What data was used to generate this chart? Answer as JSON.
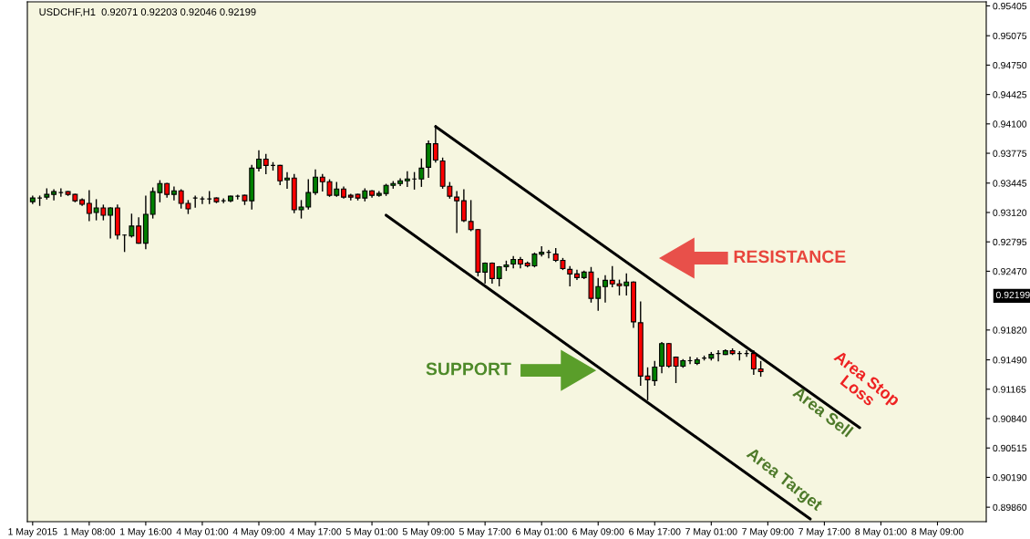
{
  "chart_data": {
    "type": "candlestick",
    "title": "USDCHF,H1  0.92071 0.92203 0.92046 0.92199",
    "categories": [
      "1 May 2015",
      null,
      null,
      null,
      null,
      null,
      null,
      null,
      "1 May 08:00",
      null,
      null,
      null,
      null,
      null,
      null,
      null,
      "1 May 16:00",
      null,
      null,
      null,
      null,
      null,
      null,
      null,
      "4 May 01:00",
      null,
      null,
      null,
      null,
      null,
      null,
      null,
      "4 May 09:00",
      null,
      null,
      null,
      null,
      null,
      null,
      null,
      "4 May 17:00",
      null,
      null,
      null,
      null,
      null,
      null,
      null,
      "5 May 01:00",
      null,
      null,
      null,
      null,
      null,
      null,
      null,
      "5 May 09:00",
      null,
      null,
      null,
      null,
      null,
      null,
      null,
      "5 May 17:00",
      null,
      null,
      null,
      null,
      null,
      null,
      null,
      "6 May 01:00",
      null,
      null,
      null,
      null,
      null,
      null,
      null,
      "6 May 09:00",
      null,
      null,
      null,
      null,
      null,
      null,
      null,
      "6 May 17:00",
      null,
      null,
      null,
      null,
      null,
      null,
      null,
      "7 May 01:00",
      null,
      null,
      null,
      null,
      null,
      null,
      null,
      "7 May 09:00",
      null,
      null,
      null,
      null,
      null,
      null,
      null,
      "7 May 17:00",
      null,
      null,
      null,
      null,
      null,
      null,
      null,
      "8 May 01:00",
      null,
      null,
      null,
      null,
      null,
      null,
      null,
      "8 May 09:00",
      null,
      null,
      null,
      null,
      null,
      null,
      null
    ],
    "ohlc": [
      [
        0.9324,
        0.933,
        0.9322,
        0.9328
      ],
      [
        0.9328,
        0.933,
        0.932,
        0.9328
      ],
      [
        0.9329,
        0.9338,
        0.9327,
        0.9332
      ],
      [
        0.9332,
        0.9337,
        0.9326,
        0.9335
      ],
      [
        0.9334,
        0.9338,
        0.933,
        0.9334
      ],
      [
        0.9335,
        0.9335,
        0.9331,
        0.9332
      ],
      [
        0.9332,
        0.9332,
        0.9324,
        0.9325
      ],
      [
        0.9326,
        0.9327,
        0.932,
        0.9321
      ],
      [
        0.9322,
        0.9336,
        0.9303,
        0.9311
      ],
      [
        0.9312,
        0.9326,
        0.9304,
        0.9317
      ],
      [
        0.9317,
        0.932,
        0.9304,
        0.9309
      ],
      [
        0.9309,
        0.9317,
        0.9284,
        0.9317
      ],
      [
        0.9317,
        0.932,
        0.9283,
        0.9287
      ],
      [
        0.9287,
        0.9287,
        0.9269,
        0.9287
      ],
      [
        0.9286,
        0.931,
        0.9285,
        0.9297
      ],
      [
        0.9297,
        0.9306,
        0.9278,
        0.9278
      ],
      [
        0.9278,
        0.933,
        0.9272,
        0.931
      ],
      [
        0.931,
        0.9339,
        0.9306,
        0.9335
      ],
      [
        0.9334,
        0.9347,
        0.9324,
        0.9344
      ],
      [
        0.9344,
        0.9344,
        0.9329,
        0.9332
      ],
      [
        0.9332,
        0.934,
        0.9326,
        0.9336
      ],
      [
        0.9336,
        0.9337,
        0.9317,
        0.9322
      ],
      [
        0.9322,
        0.9325,
        0.9311,
        0.9316
      ],
      [
        0.9328,
        0.933,
        0.9318,
        0.9328
      ],
      [
        0.9327,
        0.9329,
        0.9322,
        0.9327
      ],
      [
        0.9327,
        0.9335,
        0.9322,
        0.9327
      ],
      [
        0.9328,
        0.9328,
        0.9323,
        0.9324
      ],
      [
        0.9325,
        0.9327,
        0.9323,
        0.9325
      ],
      [
        0.9325,
        0.933,
        0.9324,
        0.933
      ],
      [
        0.933,
        0.9331,
        0.9327,
        0.933
      ],
      [
        0.9331,
        0.9331,
        0.9321,
        0.9325
      ],
      [
        0.9325,
        0.9364,
        0.9316,
        0.9361
      ],
      [
        0.9361,
        0.938,
        0.9358,
        0.9371
      ],
      [
        0.9371,
        0.9376,
        0.9355,
        0.9364
      ],
      [
        0.9364,
        0.9367,
        0.9359,
        0.9364
      ],
      [
        0.9364,
        0.9364,
        0.9343,
        0.9347
      ],
      [
        0.9348,
        0.9356,
        0.9339,
        0.935
      ],
      [
        0.935,
        0.9354,
        0.9312,
        0.9315
      ],
      [
        0.9315,
        0.9325,
        0.9306,
        0.9318
      ],
      [
        0.9318,
        0.9348,
        0.9316,
        0.9334
      ],
      [
        0.9334,
        0.9359,
        0.9332,
        0.9351
      ],
      [
        0.9351,
        0.9354,
        0.9336,
        0.9346
      ],
      [
        0.9346,
        0.9348,
        0.933,
        0.9331
      ],
      [
        0.9331,
        0.9345,
        0.933,
        0.9338
      ],
      [
        0.9338,
        0.934,
        0.9328,
        0.9329
      ],
      [
        0.9331,
        0.9332,
        0.9326,
        0.9329
      ],
      [
        0.9332,
        0.9332,
        0.9326,
        0.9328
      ],
      [
        0.9328,
        0.9338,
        0.9325,
        0.9336
      ],
      [
        0.9336,
        0.9336,
        0.9329,
        0.9331
      ],
      [
        0.9331,
        0.9335,
        0.933,
        0.9333
      ],
      [
        0.9333,
        0.9343,
        0.9331,
        0.9342
      ],
      [
        0.9342,
        0.9346,
        0.9339,
        0.9344
      ],
      [
        0.9344,
        0.9349,
        0.9342,
        0.9347
      ],
      [
        0.9347,
        0.9357,
        0.9341,
        0.9349
      ],
      [
        0.9349,
        0.9356,
        0.9338,
        0.9349
      ],
      [
        0.9349,
        0.9371,
        0.9341,
        0.9361
      ],
      [
        0.9362,
        0.9391,
        0.9351,
        0.9388
      ],
      [
        0.9388,
        0.9408,
        0.9368,
        0.937
      ],
      [
        0.9369,
        0.9372,
        0.9339,
        0.9341
      ],
      [
        0.9341,
        0.9345,
        0.9328,
        0.933
      ],
      [
        0.9329,
        0.9335,
        0.929,
        0.9325
      ],
      [
        0.9325,
        0.9337,
        0.9302,
        0.9303
      ],
      [
        0.9302,
        0.9325,
        0.9292,
        0.9293
      ],
      [
        0.9293,
        0.9293,
        0.9242,
        0.9246
      ],
      [
        0.9246,
        0.9256,
        0.9234,
        0.9256
      ],
      [
        0.9256,
        0.9256,
        0.9234,
        0.9239
      ],
      [
        0.9239,
        0.9252,
        0.9231,
        0.9252
      ],
      [
        0.9252,
        0.9258,
        0.9248,
        0.9254
      ],
      [
        0.9255,
        0.9263,
        0.9251,
        0.926
      ],
      [
        0.926,
        0.9262,
        0.9251,
        0.9255
      ],
      [
        0.9256,
        0.9257,
        0.9252,
        0.9253
      ],
      [
        0.9253,
        0.9267,
        0.9252,
        0.9266
      ],
      [
        0.9266,
        0.9274,
        0.9264,
        0.9268
      ],
      [
        0.9268,
        0.927,
        0.9262,
        0.9268
      ],
      [
        0.9266,
        0.9272,
        0.9258,
        0.9259
      ],
      [
        0.9259,
        0.9261,
        0.9249,
        0.925
      ],
      [
        0.9249,
        0.9252,
        0.9231,
        0.9244
      ],
      [
        0.9244,
        0.9248,
        0.9238,
        0.924
      ],
      [
        0.924,
        0.9247,
        0.9239,
        0.9246
      ],
      [
        0.9246,
        0.9251,
        0.9213,
        0.9217
      ],
      [
        0.9217,
        0.9239,
        0.9204,
        0.923
      ],
      [
        0.923,
        0.9242,
        0.9213,
        0.9237
      ],
      [
        0.9237,
        0.9252,
        0.923,
        0.9233
      ],
      [
        0.9233,
        0.9237,
        0.9221,
        0.9231
      ],
      [
        0.9231,
        0.9244,
        0.9221,
        0.9235
      ],
      [
        0.9235,
        0.9235,
        0.9185,
        0.9191
      ],
      [
        0.919,
        0.9213,
        0.9121,
        0.9131
      ],
      [
        0.9131,
        0.914,
        0.9105,
        0.9127
      ],
      [
        0.9126,
        0.9147,
        0.9121,
        0.9141
      ],
      [
        0.9142,
        0.9168,
        0.9135,
        0.9167
      ],
      [
        0.9167,
        0.9167,
        0.9141,
        0.9142
      ],
      [
        0.9152,
        0.9152,
        0.9124,
        0.9142
      ],
      [
        0.9142,
        0.9149,
        0.9141,
        0.9148
      ],
      [
        0.9148,
        0.9152,
        0.9145,
        0.9148
      ],
      [
        0.9145,
        0.9151,
        0.9144,
        0.9149
      ],
      [
        0.9151,
        0.9153,
        0.9149,
        0.9151
      ],
      [
        0.9151,
        0.9157,
        0.9149,
        0.9155
      ],
      [
        0.9156,
        0.9159,
        0.9148,
        0.9156
      ],
      [
        0.9155,
        0.916,
        0.9155,
        0.9159
      ],
      [
        0.9159,
        0.9161,
        0.9155,
        0.9156
      ],
      [
        0.9156,
        0.9158,
        0.9149,
        0.9156
      ],
      [
        0.9156,
        0.9159,
        0.9153,
        0.9156
      ],
      [
        0.9156,
        0.9159,
        0.9133,
        0.9139
      ],
      [
        0.9139,
        0.9147,
        0.9131,
        0.9136
      ],
      null,
      null,
      null,
      null,
      null,
      null,
      null,
      null,
      null,
      null,
      null,
      null,
      null,
      null,
      null,
      null,
      null,
      null,
      null,
      null,
      null,
      null,
      null,
      null,
      null,
      null,
      null,
      null,
      null,
      null,
      null,
      null
    ],
    "colors": [
      "#008000",
      "#000000",
      "#008000",
      "#008000",
      "#000000",
      "#ff0000",
      "#ff0000",
      "#ff0000",
      "#ff0000",
      "#008000",
      "#ff0000",
      "#008000",
      "#ff0000",
      "#000000",
      "#008000",
      "#ff0000",
      "#008000",
      "#008000",
      "#008000",
      "#ff0000",
      "#008000",
      "#ff0000",
      "#ff0000",
      "#000000",
      "#000000",
      "#000000",
      "#ff0000",
      "#000000",
      "#008000",
      "#000000",
      "#ff0000",
      "#008000",
      "#008000",
      "#ff0000",
      "#000000",
      "#ff0000",
      "#008000",
      "#ff0000",
      "#008000",
      "#008000",
      "#008000",
      "#ff0000",
      "#ff0000",
      "#008000",
      "#ff0000",
      "#ff0000",
      "#ff0000",
      "#008000",
      "#ff0000",
      "#008000",
      "#008000",
      "#008000",
      "#008000",
      "#008000",
      "#000000",
      "#008000",
      "#008000",
      "#ff0000",
      "#ff0000",
      "#ff0000",
      "#ff0000",
      "#ff0000",
      "#ff0000",
      "#ff0000",
      "#008000",
      "#ff0000",
      "#008000",
      "#008000",
      "#008000",
      "#ff0000",
      "#ff0000",
      "#008000",
      "#008000",
      "#000000",
      "#ff0000",
      "#ff0000",
      "#ff0000",
      "#ff0000",
      "#008000",
      "#ff0000",
      "#008000",
      "#008000",
      "#ff0000",
      "#ff0000",
      "#008000",
      "#ff0000",
      "#ff0000",
      "#ff0000",
      "#008000",
      "#008000",
      "#ff0000",
      "#ff0000",
      "#008000",
      "#000000",
      "#008000",
      "#000000",
      "#008000",
      "#000000",
      "#008000",
      "#ff0000",
      "#000000",
      "#000000",
      "#ff0000",
      "#ff0000",
      null,
      null,
      null,
      null,
      null,
      null,
      null,
      null,
      null,
      null,
      null,
      null,
      null,
      null,
      null,
      null,
      null,
      null,
      null,
      null,
      null,
      null,
      null,
      null,
      null,
      null,
      null,
      null,
      null,
      null,
      null,
      null
    ],
    "series": [
      {
        "type": "line",
        "color": "#000000",
        "values": [
          null,
          null,
          null,
          null,
          null,
          null,
          null,
          null,
          null,
          null,
          null,
          null,
          null,
          null,
          null,
          null,
          null,
          null,
          null,
          null,
          null,
          null,
          null,
          null,
          null,
          null,
          null,
          null,
          null,
          null,
          null,
          null,
          null,
          null,
          null,
          null,
          null,
          null,
          null,
          null,
          null,
          null,
          null,
          null,
          null,
          null,
          null,
          null,
          null,
          null,
          null,
          null,
          null,
          null,
          null,
          null,
          null,
          0.9407,
          null,
          null,
          null,
          null,
          null,
          null,
          null,
          null,
          null,
          null,
          null,
          null,
          null,
          null,
          null,
          null,
          null,
          null,
          null,
          null,
          null,
          null,
          null,
          null,
          null,
          null,
          null,
          null,
          null,
          null,
          null,
          null,
          null,
          null,
          null,
          null,
          null,
          null,
          null,
          null,
          null,
          null,
          null,
          null,
          null,
          null,
          null,
          null,
          null,
          null,
          null,
          null,
          null,
          null,
          null,
          null,
          null,
          null,
          null,
          0.9074,
          null,
          null,
          null,
          null,
          null,
          null,
          null,
          null,
          null,
          null,
          null,
          null,
          null,
          null,
          null,
          null,
          null,
          null
        ]
      },
      {
        "type": "line",
        "color": "#000000",
        "values": [
          null,
          null,
          null,
          null,
          null,
          null,
          null,
          null,
          null,
          null,
          null,
          null,
          null,
          null,
          null,
          null,
          null,
          null,
          null,
          null,
          null,
          null,
          null,
          null,
          null,
          null,
          null,
          null,
          null,
          null,
          null,
          null,
          null,
          null,
          null,
          null,
          null,
          null,
          null,
          null,
          null,
          null,
          null,
          null,
          null,
          null,
          null,
          null,
          null,
          null,
          0.9309,
          null,
          null,
          null,
          null,
          null,
          null,
          null,
          null,
          null,
          null,
          null,
          null,
          null,
          null,
          null,
          null,
          null,
          null,
          null,
          null,
          null,
          null,
          null,
          null,
          null,
          null,
          null,
          null,
          null,
          null,
          null,
          null,
          null,
          null,
          null,
          null,
          null,
          null,
          null,
          null,
          null,
          null,
          null,
          null,
          null,
          null,
          null,
          null,
          null,
          null,
          null,
          null,
          null,
          null,
          null,
          null,
          null,
          null,
          null,
          0.8973,
          null,
          null,
          null,
          null,
          null,
          null,
          null,
          null,
          null,
          null,
          null,
          null,
          null,
          null,
          null,
          null,
          null,
          null,
          null,
          null,
          null,
          null,
          null,
          null,
          null
        ]
      }
    ],
    "ylim": [
      0.897,
      0.9545
    ],
    "yticks": [
      0.95405,
      0.95075,
      {
        "value": 0.9475,
        "label": "0.94750"
      },
      0.94425,
      {
        "value": 0.941,
        "label": "0.94100"
      },
      0.93775,
      0.93445,
      {
        "value": 0.9312,
        "label": "0.93120"
      },
      0.92795,
      {
        "value": 0.9247,
        "label": "0.92470"
      },
      {
        "value": 0.9182,
        "label": "0.91820"
      },
      {
        "value": 0.9149,
        "label": "0.91490"
      },
      0.91165,
      {
        "value": 0.9084,
        "label": "0.90840"
      },
      0.90515,
      {
        "value": 0.9019,
        "label": "0.90190"
      },
      {
        "value": 0.8986,
        "label": "0.89860"
      }
    ],
    "grid": false,
    "annotations": [
      "RESISTANCE",
      "SUPPORT",
      "Area Stop\nLoss",
      "Area Sell",
      "Area Target",
      "0.92199"
    ]
  }
}
